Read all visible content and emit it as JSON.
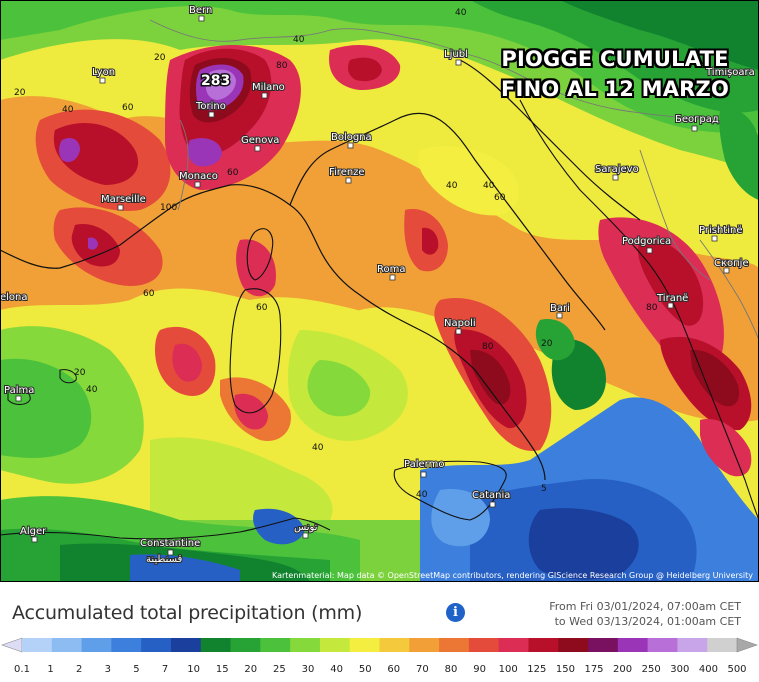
{
  "map": {
    "overlay_title_line1": "PIOGGE CUMULATE",
    "overlay_title_line2": "FINO AL 12 MARZO",
    "peak_value": "283",
    "attribution": "Kartenmaterial: Map data © OpenStreetMap contributors, rendering GIScience Research Group @ Heidelberg University",
    "cities": [
      {
        "name": "Bern"
      },
      {
        "name": "Lyon"
      },
      {
        "name": "Milano"
      },
      {
        "name": "Torino"
      },
      {
        "name": "Genova"
      },
      {
        "name": "Bologna"
      },
      {
        "name": "Monaco"
      },
      {
        "name": "Marseille"
      },
      {
        "name": "Firenze"
      },
      {
        "name": "Roma"
      },
      {
        "name": "Napoli"
      },
      {
        "name": "Bari"
      },
      {
        "name": "Palermo"
      },
      {
        "name": "Catania"
      },
      {
        "name": "Palma"
      },
      {
        "name": "Alger"
      },
      {
        "name": "Constantine"
      },
      {
        "name": "قسنطينة"
      },
      {
        "name": "تونس"
      },
      {
        "name": "Ljubl"
      },
      {
        "name": "Sarajevo"
      },
      {
        "name": "Podgorica"
      },
      {
        "name": "Tiranë"
      },
      {
        "name": "Prishtinë"
      },
      {
        "name": "Скопје"
      },
      {
        "name": "Београд"
      },
      {
        "name": "Timișoara"
      },
      {
        "name": "elona"
      }
    ],
    "contour_labels": [
      "40",
      "20",
      "60",
      "80",
      "100",
      "40",
      "60",
      "40",
      "60",
      "40",
      "40",
      "20",
      "40",
      "60",
      "80",
      "40",
      "20",
      "5",
      "60",
      "80",
      "20",
      "40"
    ]
  },
  "legend": {
    "title": "Accumulated total precipitation (mm)",
    "info_icon": "info-icon",
    "date_from": "From Fri 03/01/2024, 07:00am CET",
    "date_to": "to Wed 03/13/2024, 01:00am CET",
    "ticks": [
      "0.1",
      "1",
      "2",
      "3",
      "5",
      "7",
      "10",
      "15",
      "20",
      "25",
      "30",
      "40",
      "50",
      "60",
      "70",
      "80",
      "90",
      "100",
      "125",
      "150",
      "175",
      "200",
      "250",
      "300",
      "400",
      "500"
    ],
    "colors": [
      "#dcdcf5",
      "#b4d2f8",
      "#8cbcf2",
      "#5f9ee8",
      "#3c7fdc",
      "#2660c4",
      "#1a3f9c",
      "#11832f",
      "#27a335",
      "#4cc23c",
      "#86d93b",
      "#c4e93c",
      "#f3ee3f",
      "#f4c93b",
      "#f19f36",
      "#ec7734",
      "#e44b3a",
      "#dc2d54",
      "#b8102a",
      "#8e0b1e",
      "#7a1060",
      "#9a35b8",
      "#b870d8",
      "#c8a4e8",
      "#d0d0d0",
      "#a8a8a8"
    ]
  },
  "colors": {
    "sea_deep": "#1f4fd1",
    "sea": "#3a7ee8",
    "land_green": "#38a83b",
    "yellow": "#eeea3e",
    "orange": "#f09a35",
    "red": "#e5493b",
    "dark_red": "#a0101f",
    "purple": "#9b3fcb"
  }
}
